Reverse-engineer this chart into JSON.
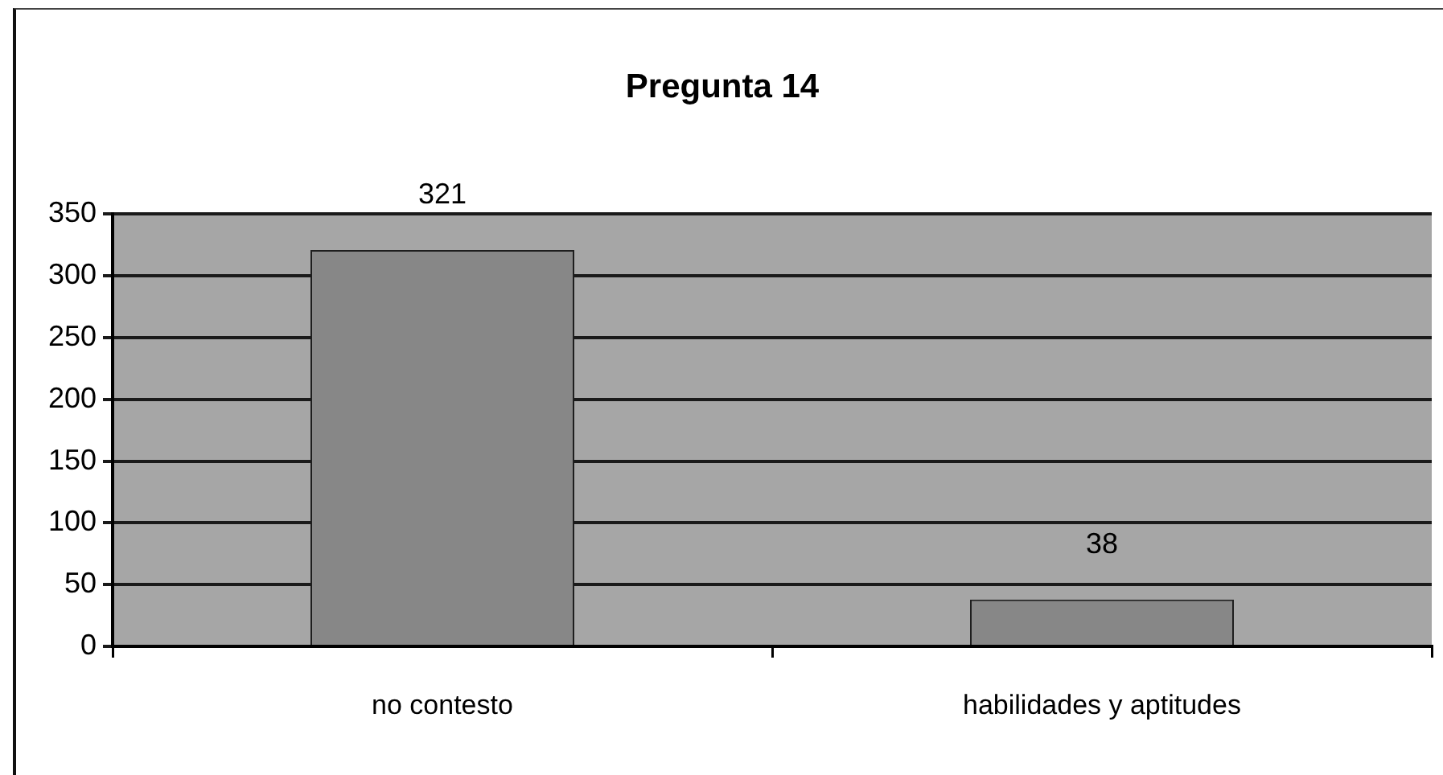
{
  "chart_data": {
    "type": "bar",
    "title": "Pregunta 14",
    "categories": [
      "no contesto",
      "habilidades y aptitudes"
    ],
    "values": [
      321,
      38
    ],
    "color": "#878787",
    "ylim": [
      0,
      350
    ],
    "yticks": [
      0,
      50,
      100,
      150,
      200,
      250,
      300,
      350
    ],
    "grid": "y",
    "data_labels": true
  }
}
